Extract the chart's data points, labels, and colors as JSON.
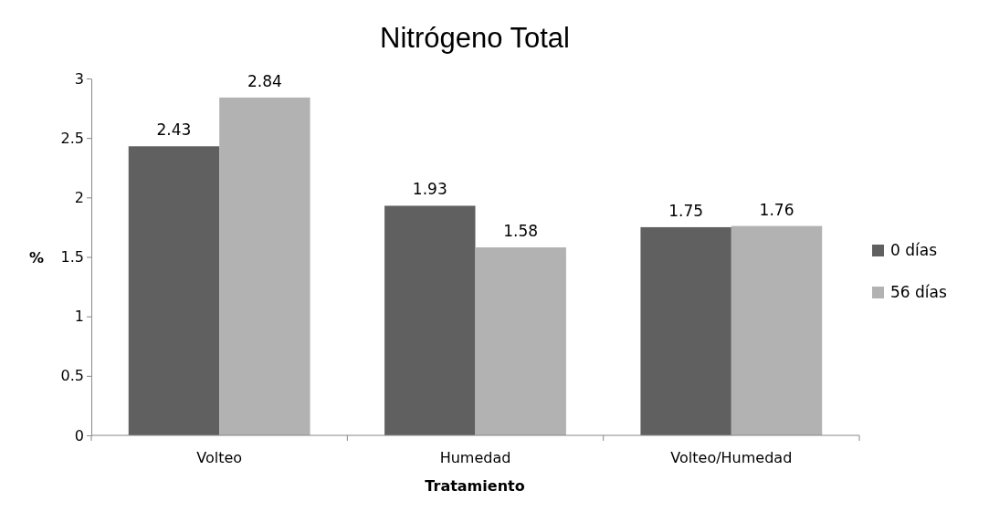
{
  "chart_data": {
    "type": "bar",
    "title": "Nitrógeno Total",
    "xlabel": "Tratamiento",
    "ylabel": "%",
    "categories": [
      "Volteo",
      "Humedad",
      "Volteo/Humedad"
    ],
    "series": [
      {
        "name": "0 días",
        "color": "#606060",
        "values": [
          2.43,
          1.93,
          1.75
        ]
      },
      {
        "name": "56 días",
        "color": "#b2b2b2",
        "values": [
          2.84,
          1.58,
          1.76
        ]
      }
    ],
    "ylim": [
      0,
      3
    ],
    "yticks": [
      0,
      0.5,
      1,
      1.5,
      2,
      2.5,
      3
    ],
    "data_labels": true,
    "legend": "right",
    "grid": false
  }
}
